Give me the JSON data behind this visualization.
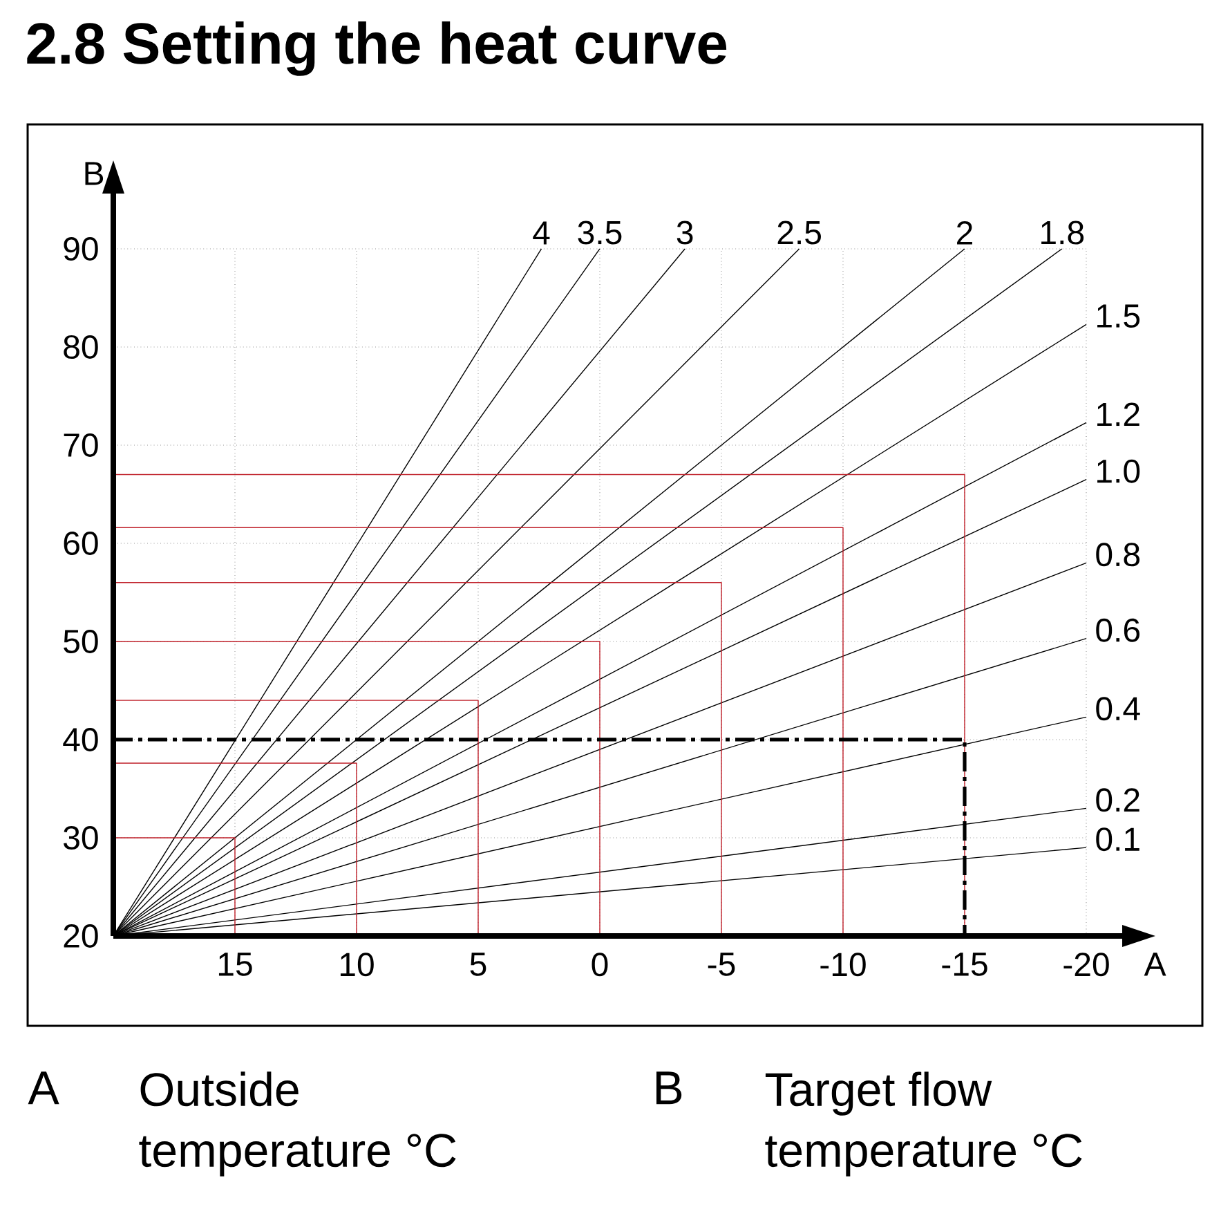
{
  "chart_data": {
    "type": "line",
    "title": "2.8    Setting the heat curve",
    "xlabel": "A",
    "ylabel": "B",
    "annotations": [
      "A",
      "Outside temperature °C",
      "B",
      "Target flow temperature °C"
    ],
    "xlim": [
      20,
      -20
    ],
    "ylim": [
      20,
      90
    ],
    "xticks": [
      15,
      10,
      5,
      0,
      -5,
      -10,
      -15,
      -20
    ],
    "yticks": [
      20,
      30,
      40,
      50,
      60,
      70,
      80,
      90
    ],
    "grid": true,
    "marker": "none",
    "series": [
      {
        "name": "4",
        "color": "#000000",
        "x": [
          20,
          2.4
        ],
        "values": [
          20,
          90
        ]
      },
      {
        "name": "3.5",
        "color": "#000000",
        "x": [
          20,
          0
        ],
        "values": [
          20,
          90
        ]
      },
      {
        "name": "3",
        "color": "#000000",
        "x": [
          20,
          -3.5
        ],
        "values": [
          20,
          90
        ]
      },
      {
        "name": "2.5",
        "color": "#000000",
        "x": [
          20,
          -8.2
        ],
        "values": [
          20,
          90
        ]
      },
      {
        "name": "2",
        "color": "#000000",
        "x": [
          20,
          -15
        ],
        "values": [
          20,
          90
        ]
      },
      {
        "name": "1.8",
        "color": "#000000",
        "x": [
          20,
          -19
        ],
        "values": [
          20,
          90
        ]
      },
      {
        "name": "1.5",
        "color": "#000000",
        "x": [
          20,
          -20
        ],
        "values": [
          20,
          82.3
        ]
      },
      {
        "name": "1.2",
        "color": "#000000",
        "x": [
          20,
          -20
        ],
        "values": [
          20,
          72.3
        ]
      },
      {
        "name": "1.0",
        "color": "#000000",
        "x": [
          20,
          -20
        ],
        "values": [
          20,
          66.5
        ]
      },
      {
        "name": "0.8",
        "color": "#000000",
        "x": [
          20,
          -20
        ],
        "values": [
          20,
          58
        ]
      },
      {
        "name": "0.6",
        "color": "#000000",
        "x": [
          20,
          -20
        ],
        "values": [
          20,
          50.3
        ]
      },
      {
        "name": "0.4",
        "color": "#000000",
        "x": [
          20,
          -20
        ],
        "values": [
          20,
          42.3
        ]
      },
      {
        "name": "0.2",
        "color": "#000000",
        "x": [
          20,
          -20
        ],
        "values": [
          20,
          33
        ]
      },
      {
        "name": "0.1",
        "color": "#000000",
        "x": [
          20,
          -20
        ],
        "values": [
          20,
          29
        ]
      },
      {
        "color": "#c0202a",
        "x": [
          20,
          15,
          15
        ],
        "values": [
          30,
          30,
          20
        ]
      },
      {
        "color": "#c0202a",
        "x": [
          20,
          10,
          10
        ],
        "values": [
          37.6,
          37.6,
          20
        ]
      },
      {
        "color": "#c0202a",
        "x": [
          20,
          5,
          5
        ],
        "values": [
          44,
          44,
          20
        ]
      },
      {
        "color": "#c0202a",
        "x": [
          20,
          0,
          0
        ],
        "values": [
          50,
          50,
          20
        ]
      },
      {
        "color": "#c0202a",
        "x": [
          20,
          -5,
          -5
        ],
        "values": [
          56,
          56,
          20
        ]
      },
      {
        "color": "#c0202a",
        "x": [
          20,
          -10,
          -10
        ],
        "values": [
          61.6,
          61.6,
          20
        ]
      },
      {
        "color": "#c0202a",
        "x": [
          20,
          -15,
          -15
        ],
        "values": [
          67,
          67,
          20
        ]
      },
      {
        "color": "#000000",
        "x": [
          20,
          -15,
          -15
        ],
        "values": [
          40,
          40,
          20
        ],
        "line_style": "dashed"
      }
    ]
  }
}
